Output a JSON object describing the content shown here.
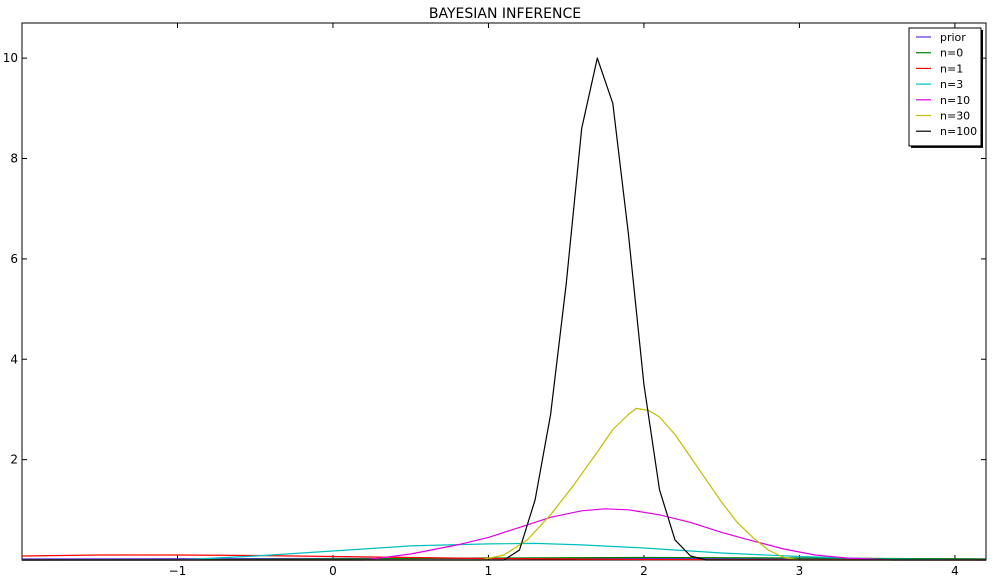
{
  "chart_data": {
    "type": "line",
    "title": "BAYESIAN INFERENCE",
    "xlabel": "",
    "ylabel": "",
    "xlim": [
      -2.0,
      4.2
    ],
    "ylim": [
      0,
      10.7
    ],
    "xticks": [
      -1,
      0,
      1,
      2,
      3,
      4
    ],
    "yticks": [
      2,
      4,
      6,
      8,
      10
    ],
    "grid": false,
    "legend_position": "top-right",
    "series": [
      {
        "name": "prior",
        "color": "#5b2de8",
        "points": [
          [
            -2.0,
            0.02
          ],
          [
            -1.0,
            0.025
          ],
          [
            0.0,
            0.03
          ],
          [
            1.0,
            0.03
          ],
          [
            2.0,
            0.03
          ],
          [
            3.0,
            0.03
          ],
          [
            3.5,
            0.025
          ],
          [
            4.2,
            0.02
          ]
        ]
      },
      {
        "name": "n=0",
        "color": "#008000",
        "points": [
          [
            -2.0,
            0.0
          ],
          [
            -1.0,
            0.005
          ],
          [
            0.0,
            0.02
          ],
          [
            1.0,
            0.04
          ],
          [
            2.0,
            0.05
          ],
          [
            3.0,
            0.04
          ],
          [
            4.2,
            0.02
          ]
        ]
      },
      {
        "name": "n=1",
        "color": "#ff0000",
        "points": [
          [
            -2.0,
            0.08
          ],
          [
            -1.5,
            0.1
          ],
          [
            -1.0,
            0.1
          ],
          [
            -0.5,
            0.09
          ],
          [
            0.0,
            0.07
          ],
          [
            0.5,
            0.05
          ],
          [
            1.0,
            0.03
          ],
          [
            1.5,
            0.02
          ],
          [
            2.0,
            0.01
          ],
          [
            2.5,
            0.005
          ],
          [
            3.0,
            0.003
          ],
          [
            4.2,
            0.0
          ]
        ]
      },
      {
        "name": "n=3",
        "color": "#00bfbf",
        "points": [
          [
            -2.0,
            0.0
          ],
          [
            -1.0,
            0.0
          ],
          [
            -0.5,
            0.08
          ],
          [
            0.0,
            0.18
          ],
          [
            0.5,
            0.28
          ],
          [
            1.0,
            0.32
          ],
          [
            1.3,
            0.33
          ],
          [
            1.6,
            0.3
          ],
          [
            2.0,
            0.24
          ],
          [
            2.5,
            0.14
          ],
          [
            3.0,
            0.07
          ],
          [
            3.5,
            0.02
          ],
          [
            4.2,
            0.0
          ]
        ]
      },
      {
        "name": "n=10",
        "color": "#e000e0",
        "points": [
          [
            -2.0,
            0.0
          ],
          [
            0.2,
            0.0
          ],
          [
            0.5,
            0.12
          ],
          [
            0.8,
            0.3
          ],
          [
            1.0,
            0.45
          ],
          [
            1.2,
            0.65
          ],
          [
            1.4,
            0.85
          ],
          [
            1.6,
            0.98
          ],
          [
            1.75,
            1.02
          ],
          [
            1.9,
            1.0
          ],
          [
            2.1,
            0.9
          ],
          [
            2.3,
            0.75
          ],
          [
            2.5,
            0.55
          ],
          [
            2.7,
            0.38
          ],
          [
            2.9,
            0.22
          ],
          [
            3.1,
            0.1
          ],
          [
            3.3,
            0.04
          ],
          [
            3.6,
            0.0
          ],
          [
            4.2,
            0.0
          ]
        ]
      },
      {
        "name": "n=30",
        "color": "#bfbf00",
        "points": [
          [
            -2.0,
            0.0
          ],
          [
            0.95,
            0.0
          ],
          [
            1.1,
            0.1
          ],
          [
            1.25,
            0.4
          ],
          [
            1.4,
            0.9
          ],
          [
            1.55,
            1.5
          ],
          [
            1.7,
            2.15
          ],
          [
            1.8,
            2.6
          ],
          [
            1.9,
            2.9
          ],
          [
            1.95,
            3.02
          ],
          [
            2.03,
            2.98
          ],
          [
            2.1,
            2.85
          ],
          [
            2.2,
            2.5
          ],
          [
            2.3,
            2.05
          ],
          [
            2.4,
            1.6
          ],
          [
            2.5,
            1.15
          ],
          [
            2.6,
            0.75
          ],
          [
            2.7,
            0.45
          ],
          [
            2.8,
            0.2
          ],
          [
            2.9,
            0.05
          ],
          [
            3.0,
            0.0
          ],
          [
            4.2,
            0.0
          ]
        ]
      },
      {
        "name": "n=100",
        "color": "#000000",
        "points": [
          [
            -2.0,
            0.0
          ],
          [
            1.1,
            0.0
          ],
          [
            1.2,
            0.2
          ],
          [
            1.3,
            1.2
          ],
          [
            1.4,
            2.9
          ],
          [
            1.5,
            5.5
          ],
          [
            1.6,
            8.6
          ],
          [
            1.7,
            10.0
          ],
          [
            1.8,
            9.1
          ],
          [
            1.9,
            6.5
          ],
          [
            2.0,
            3.5
          ],
          [
            2.1,
            1.4
          ],
          [
            2.2,
            0.4
          ],
          [
            2.3,
            0.08
          ],
          [
            2.4,
            0.0
          ],
          [
            4.2,
            0.0
          ]
        ]
      }
    ]
  }
}
